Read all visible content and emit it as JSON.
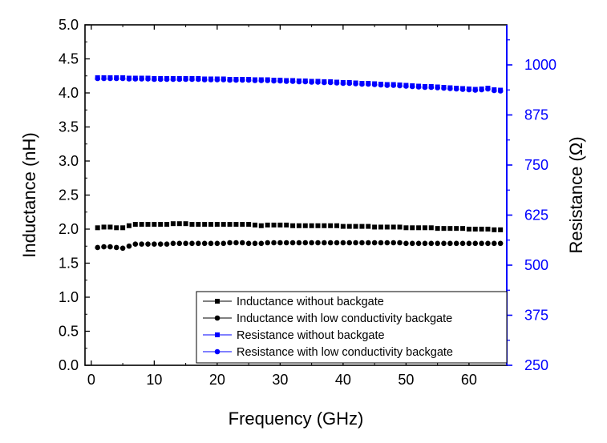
{
  "chart_data": {
    "type": "scatter",
    "xlabel": "Frequency (GHz)",
    "ylabel_left": "Inductance (nH)",
    "ylabel_right": "Resistance (Ω)",
    "xlim": [
      -1,
      66
    ],
    "ylim_left": [
      0,
      5
    ],
    "ylim_right": [
      250,
      1100
    ],
    "x_ticks": [
      0,
      10,
      20,
      30,
      40,
      50,
      60
    ],
    "x_tick_labels": [
      "0",
      "10",
      "20",
      "30",
      "40",
      "50",
      "60"
    ],
    "y_left_ticks": [
      0,
      0.5,
      1,
      1.5,
      2,
      2.5,
      3,
      3.5,
      4,
      4.5,
      5
    ],
    "y_left_tick_labels": [
      "0.0",
      "0.5",
      "1.0",
      "1.5",
      "2.0",
      "2.5",
      "3.0",
      "3.5",
      "4.0",
      "4.5",
      "5.0"
    ],
    "y_right_ticks": [
      250,
      375,
      500,
      625,
      750,
      875,
      1000
    ],
    "y_right_tick_labels": [
      "250",
      "375",
      "500",
      "625",
      "750",
      "875",
      "1000"
    ],
    "legend_position": "bottom-right",
    "colors": {
      "left_axis": "#000000",
      "right_axis": "#0000ff"
    },
    "series": [
      {
        "name": "Inductance without backgate",
        "axis": "left",
        "marker": "square",
        "color": "#000000",
        "x": [
          1,
          2,
          3,
          4,
          5,
          6,
          7,
          8,
          9,
          10,
          11,
          12,
          13,
          14,
          15,
          16,
          17,
          18,
          19,
          20,
          21,
          22,
          23,
          24,
          25,
          26,
          27,
          28,
          29,
          30,
          31,
          32,
          33,
          34,
          35,
          36,
          37,
          38,
          39,
          40,
          41,
          42,
          43,
          44,
          45,
          46,
          47,
          48,
          49,
          50,
          51,
          52,
          53,
          54,
          55,
          56,
          57,
          58,
          59,
          60,
          61,
          62,
          63,
          64,
          65
        ],
        "y": [
          2.02,
          2.03,
          2.03,
          2.02,
          2.02,
          2.05,
          2.07,
          2.07,
          2.07,
          2.07,
          2.07,
          2.07,
          2.08,
          2.08,
          2.08,
          2.07,
          2.07,
          2.07,
          2.07,
          2.07,
          2.07,
          2.07,
          2.07,
          2.07,
          2.07,
          2.06,
          2.05,
          2.06,
          2.06,
          2.06,
          2.06,
          2.05,
          2.05,
          2.05,
          2.05,
          2.05,
          2.05,
          2.05,
          2.05,
          2.04,
          2.04,
          2.04,
          2.04,
          2.04,
          2.03,
          2.03,
          2.03,
          2.03,
          2.03,
          2.02,
          2.02,
          2.02,
          2.02,
          2.02,
          2.01,
          2.01,
          2.01,
          2.01,
          2.01,
          2.0,
          2.0,
          2.0,
          2.0,
          1.99,
          1.99
        ]
      },
      {
        "name": "Inductance with low conductivity backgate",
        "axis": "left",
        "marker": "circle",
        "color": "#000000",
        "x": [
          1,
          2,
          3,
          4,
          5,
          6,
          7,
          8,
          9,
          10,
          11,
          12,
          13,
          14,
          15,
          16,
          17,
          18,
          19,
          20,
          21,
          22,
          23,
          24,
          25,
          26,
          27,
          28,
          29,
          30,
          31,
          32,
          33,
          34,
          35,
          36,
          37,
          38,
          39,
          40,
          41,
          42,
          43,
          44,
          45,
          46,
          47,
          48,
          49,
          50,
          51,
          52,
          53,
          54,
          55,
          56,
          57,
          58,
          59,
          60,
          61,
          62,
          63,
          64,
          65
        ],
        "y": [
          1.73,
          1.74,
          1.74,
          1.73,
          1.72,
          1.75,
          1.78,
          1.78,
          1.78,
          1.78,
          1.78,
          1.78,
          1.79,
          1.79,
          1.79,
          1.79,
          1.79,
          1.79,
          1.79,
          1.79,
          1.79,
          1.8,
          1.8,
          1.8,
          1.79,
          1.79,
          1.79,
          1.8,
          1.8,
          1.8,
          1.8,
          1.8,
          1.8,
          1.8,
          1.8,
          1.8,
          1.8,
          1.8,
          1.8,
          1.8,
          1.8,
          1.8,
          1.8,
          1.8,
          1.8,
          1.8,
          1.8,
          1.8,
          1.8,
          1.79,
          1.79,
          1.79,
          1.79,
          1.79,
          1.79,
          1.79,
          1.79,
          1.79,
          1.79,
          1.79,
          1.79,
          1.79,
          1.79,
          1.79,
          1.79
        ]
      },
      {
        "name": "Resistance without backgate",
        "axis": "right",
        "marker": "square",
        "color": "#0000ff",
        "x": [
          1,
          2,
          3,
          4,
          5,
          6,
          7,
          8,
          9,
          10,
          11,
          12,
          13,
          14,
          15,
          16,
          17,
          18,
          19,
          20,
          21,
          22,
          23,
          24,
          25,
          26,
          27,
          28,
          29,
          30,
          31,
          32,
          33,
          34,
          35,
          36,
          37,
          38,
          39,
          40,
          41,
          42,
          43,
          44,
          45,
          46,
          47,
          48,
          49,
          50,
          51,
          52,
          53,
          54,
          55,
          56,
          57,
          58,
          59,
          60,
          61,
          62,
          63,
          64,
          65
        ],
        "y": [
          968,
          968,
          968,
          968,
          968,
          967,
          967,
          967,
          967,
          966,
          966,
          966,
          966,
          966,
          966,
          966,
          966,
          965,
          965,
          965,
          965,
          964,
          964,
          964,
          964,
          963,
          963,
          963,
          962,
          962,
          961,
          961,
          960,
          960,
          959,
          959,
          958,
          958,
          957,
          956,
          956,
          955,
          954,
          954,
          953,
          952,
          951,
          951,
          950,
          949,
          948,
          947,
          946,
          946,
          945,
          944,
          943,
          942,
          941,
          940,
          939,
          940,
          942,
          938,
          937
        ]
      },
      {
        "name": "Resistance with low conductivity backgate",
        "axis": "right",
        "marker": "circle",
        "color": "#0000ff",
        "x": [
          1,
          2,
          3,
          4,
          5,
          6,
          7,
          8,
          9,
          10,
          11,
          12,
          13,
          14,
          15,
          16,
          17,
          18,
          19,
          20,
          21,
          22,
          23,
          24,
          25,
          26,
          27,
          28,
          29,
          30,
          31,
          32,
          33,
          34,
          35,
          36,
          37,
          38,
          39,
          40,
          41,
          42,
          43,
          44,
          45,
          46,
          47,
          48,
          49,
          50,
          51,
          52,
          53,
          54,
          55,
          56,
          57,
          58,
          59,
          60,
          61,
          62,
          63,
          64,
          65
        ],
        "y": [
          966,
          966,
          966,
          966,
          966,
          965,
          965,
          965,
          965,
          964,
          964,
          964,
          964,
          964,
          964,
          964,
          964,
          963,
          963,
          963,
          963,
          962,
          962,
          962,
          962,
          961,
          961,
          961,
          960,
          960,
          959,
          959,
          958,
          958,
          957,
          957,
          956,
          956,
          955,
          954,
          954,
          953,
          952,
          952,
          951,
          950,
          949,
          949,
          948,
          947,
          946,
          945,
          944,
          944,
          943,
          942,
          941,
          940,
          939,
          938,
          937,
          938,
          940,
          936,
          935
        ]
      }
    ]
  }
}
